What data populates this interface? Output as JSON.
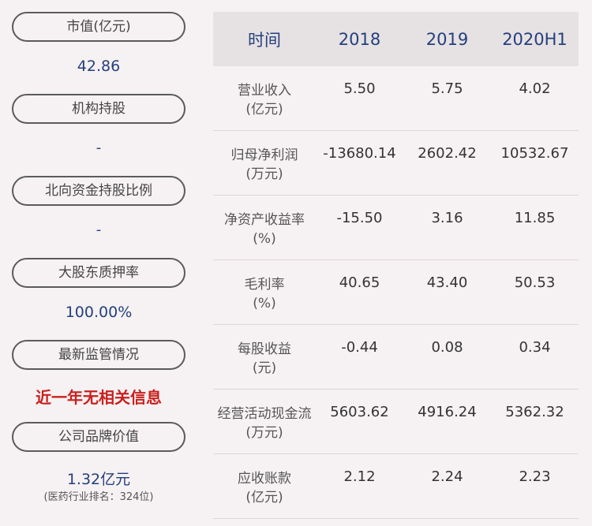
{
  "left": {
    "items": [
      {
        "label": "市值(亿元)",
        "value": "42.86"
      },
      {
        "label": "机构持股",
        "value": "-"
      },
      {
        "label": "北向资金持股比例",
        "value": "-"
      },
      {
        "label": "大股东质押率",
        "value": "100.00%"
      },
      {
        "label": "最新监管情况",
        "value": "近一年无相关信息"
      },
      {
        "label": "公司品牌价值",
        "value": "1.32亿元",
        "note": "(医药行业排名：324位)"
      }
    ]
  },
  "table": {
    "headers": [
      "时间",
      "2018",
      "2019",
      "2020H1"
    ],
    "rows": [
      {
        "label": "营业收入",
        "unit": "(亿元)",
        "values": [
          "5.50",
          "5.75",
          "4.02"
        ]
      },
      {
        "label": "归母净利润",
        "unit": "(万元)",
        "values": [
          "-13680.14",
          "2602.42",
          "10532.67"
        ]
      },
      {
        "label": "净资产收益率",
        "unit": "(%)",
        "values": [
          "-15.50",
          "3.16",
          "11.85"
        ]
      },
      {
        "label": "毛利率",
        "unit": "(%)",
        "values": [
          "40.65",
          "43.40",
          "50.53"
        ]
      },
      {
        "label": "每股收益",
        "unit": "(元)",
        "values": [
          "-0.44",
          "0.08",
          "0.34"
        ]
      },
      {
        "label": "经营活动现金流",
        "unit": "(万元)",
        "values": [
          "5603.62",
          "4916.24",
          "5362.32"
        ]
      },
      {
        "label": "应收账款",
        "unit": "(亿元)",
        "values": [
          "2.12",
          "2.24",
          "2.23"
        ]
      }
    ]
  },
  "colors": {
    "background": "#f6f1f2",
    "value_blue": "#24407e",
    "alert_red": "#c8211f",
    "header_bg": "#e6e1e2"
  }
}
